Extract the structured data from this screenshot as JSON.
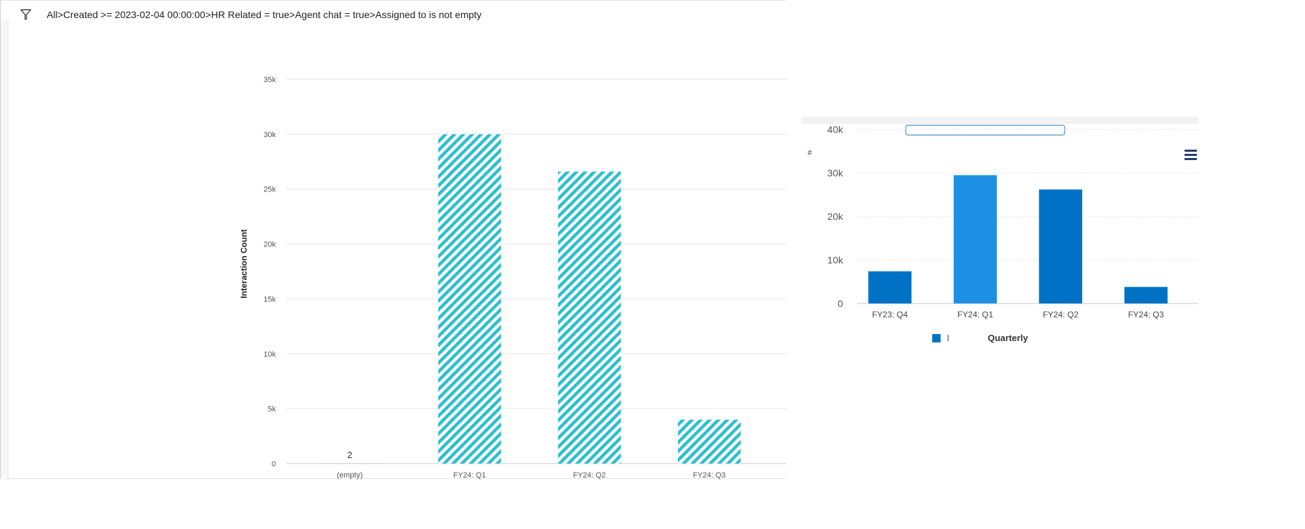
{
  "filter": {
    "icon": "filter-icon",
    "breadcrumb": "All>Created >= 2023-02-04 00:00:00>HR Related = true>Agent chat = true>Assigned to is not empty"
  },
  "colors": {
    "left_bar": "#2bbfd0",
    "right_bar_primary": "#0072c6",
    "right_bar_highlight": "#1e90e3",
    "menu": "#283a6e"
  },
  "chart_data": [
    {
      "type": "bar",
      "style": "hatched",
      "categories": [
        "(empty)",
        "FY24: Q1",
        "FY24: Q2",
        "FY24: Q3"
      ],
      "values": [
        2,
        30000,
        26600,
        4000
      ],
      "data_labels": [
        "2",
        "",
        "",
        ""
      ],
      "ylabel": "Interaction Count",
      "ylim": [
        0,
        35000
      ],
      "yticks": [
        "0",
        "5k",
        "10k",
        "15k",
        "20k",
        "25k",
        "30k",
        "35k"
      ],
      "grid": true
    },
    {
      "type": "bar",
      "categories": [
        "FY23: Q4",
        "FY24: Q1",
        "FY24: Q2",
        "FY24: Q3"
      ],
      "values": [
        7400,
        29500,
        26200,
        3800
      ],
      "ylabel": "#",
      "ylim": [
        0,
        40000
      ],
      "yticks": [
        "0",
        "10k",
        "20k",
        "30k",
        "40k"
      ],
      "grid": true,
      "legend": {
        "marker": "I",
        "title": "Quarterly",
        "position": "bottom"
      },
      "menu_icon": "hamburger-menu-icon"
    }
  ]
}
